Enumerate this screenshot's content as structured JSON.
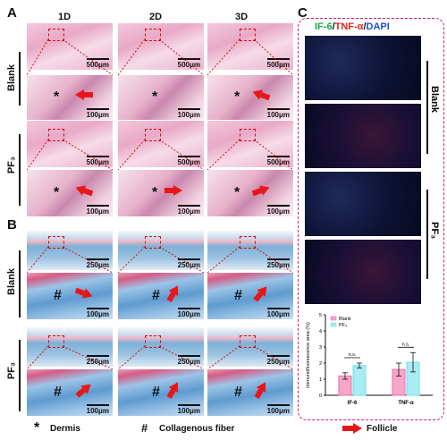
{
  "panels": {
    "A": "A",
    "B": "B",
    "C": "C"
  },
  "columns": [
    "1D",
    "2D",
    "3D"
  ],
  "rows": {
    "blank": "Blank",
    "pf3": "PF₃"
  },
  "scales": {
    "low": "500μm",
    "high": "100μm",
    "mt_low": "250μm"
  },
  "marks": {
    "dermis": "*",
    "collagen": "#"
  },
  "legend": {
    "dermis_symbol": "*",
    "dermis": "Dermis",
    "collagen_symbol": "#",
    "collagen": "Collagenous fiber",
    "follicle": "Follicle"
  },
  "panel_c": {
    "title_if6": "IF-6",
    "title_sep1": "/",
    "title_tnf": "TNF-α",
    "title_sep2": "/",
    "title_dapi": "DAPI",
    "row_blank": "Blank",
    "row_pf3": "PF₃"
  },
  "colors": {
    "if6": "#1aa84a",
    "tnf": "#e0241c",
    "dapi": "#1f4fd0",
    "blank_bar": "#f06aa8",
    "pf3_bar": "#6fe0ea",
    "arrow": "#e8161a",
    "frame": "#d11a7a"
  },
  "chart_data": {
    "type": "bar",
    "categories": [
      "IF-6",
      "TNF-α"
    ],
    "ylabel": "Immunofluorescence area (%)",
    "ylim": [
      0,
      5
    ],
    "yticks": [
      "0",
      "1",
      "2",
      "3",
      "4",
      "5"
    ],
    "legend_position": "top-left",
    "series": [
      {
        "name": "Blank",
        "values": [
          1.2,
          1.6
        ],
        "errors": [
          0.2,
          0.4
        ]
      },
      {
        "name": "PF₃",
        "values": [
          1.85,
          2.05
        ],
        "errors": [
          0.15,
          0.6
        ]
      }
    ],
    "annotations": [
      "n.s.",
      "n.s."
    ]
  }
}
